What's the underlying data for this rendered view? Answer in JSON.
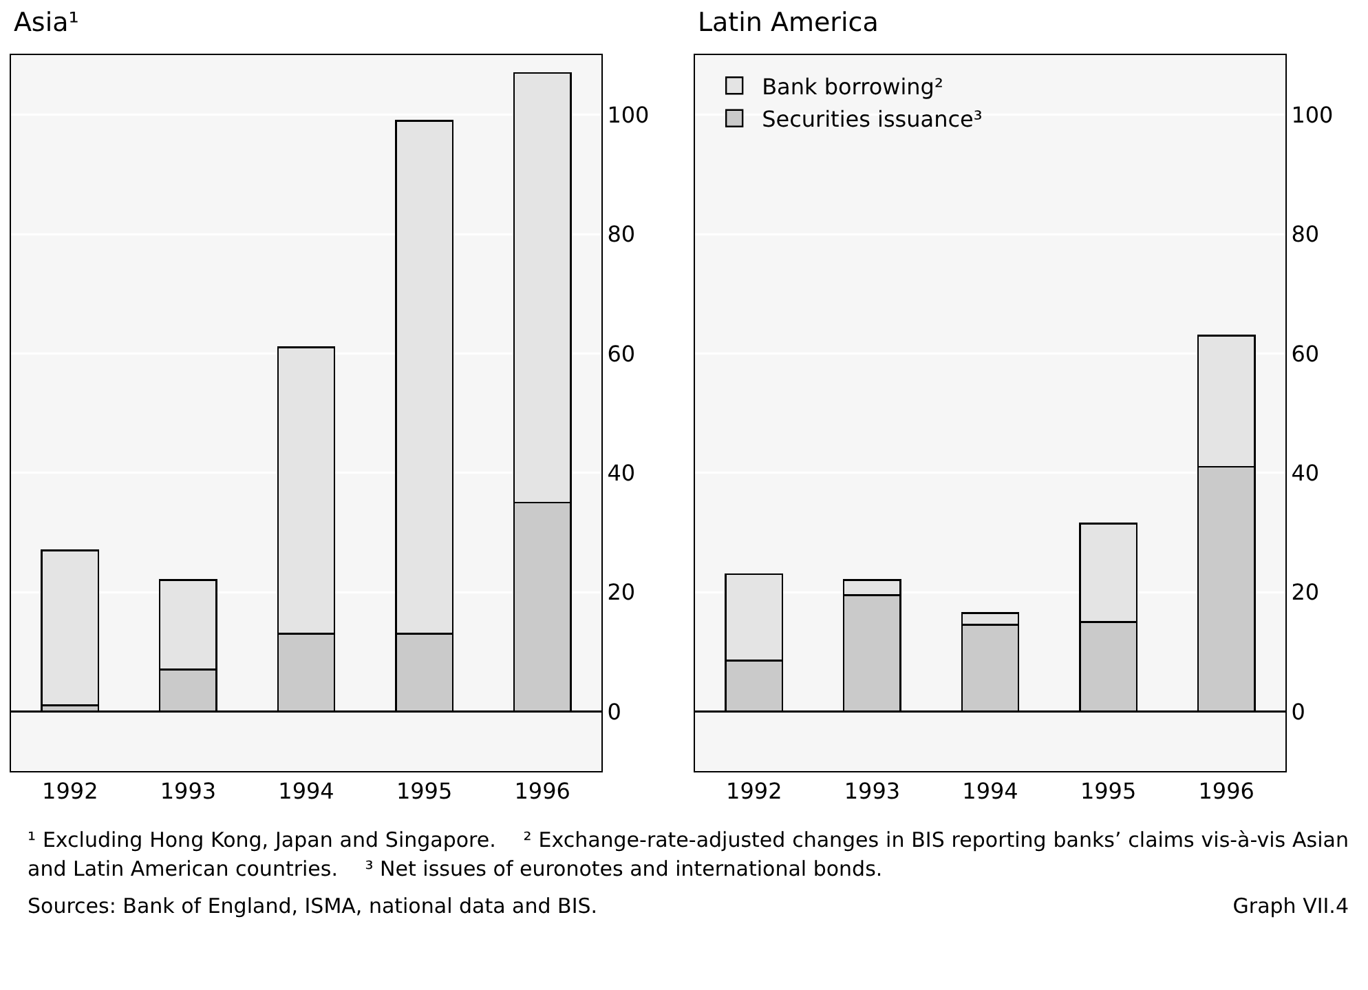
{
  "chart_data": [
    {
      "type": "bar",
      "title": "Asia¹",
      "categories": [
        "1992",
        "1993",
        "1994",
        "1995",
        "1996"
      ],
      "stacked": true,
      "series": [
        {
          "color": "#cacaca",
          "values": [
            1,
            7,
            13,
            13,
            35
          ]
        },
        {
          "color": "#e4e4e4",
          "values": [
            26,
            15,
            48,
            86,
            72
          ]
        }
      ],
      "ylim": [
        -10,
        110
      ],
      "yticks": [
        0,
        20,
        40,
        60,
        80,
        100
      ],
      "grid": "y",
      "legend": false,
      "annotations": [
        "¹ Excluding Hong Kong, Japan and Singapore.",
        "² Exchange-rate-adjusted changes in BIS reporting banks’ claims vis-à-vis Asian and Latin American countries.",
        "³ Net issues of euronotes and international bonds.",
        "Sources: Bank of England, ISMA, national data and BIS.",
        "Graph VII.4"
      ]
    },
    {
      "type": "bar",
      "title": "Latin America",
      "categories": [
        "1992",
        "1993",
        "1994",
        "1995",
        "1996"
      ],
      "stacked": true,
      "series": [
        {
          "name": "Securities issuance³",
          "color": "#cacaca",
          "values": [
            8.5,
            19.5,
            14.5,
            15,
            41
          ]
        },
        {
          "name": "Bank borrowing²",
          "color": "#e4e4e4",
          "values": [
            14.5,
            2.5,
            2,
            16.5,
            22
          ]
        }
      ],
      "ylim": [
        -10,
        110
      ],
      "yticks": [
        0,
        20,
        40,
        60,
        80,
        100
      ],
      "grid": "y",
      "legend": "top left"
    }
  ]
}
